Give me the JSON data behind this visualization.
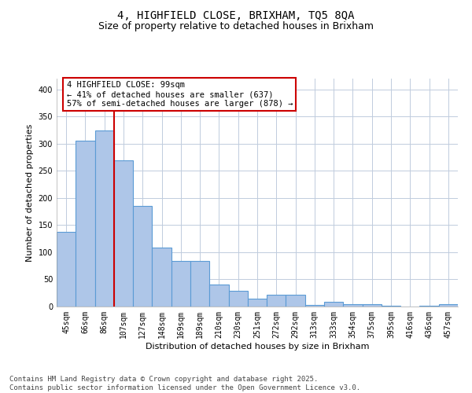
{
  "title_line1": "4, HIGHFIELD CLOSE, BRIXHAM, TQ5 8QA",
  "title_line2": "Size of property relative to detached houses in Brixham",
  "xlabel": "Distribution of detached houses by size in Brixham",
  "ylabel": "Number of detached properties",
  "categories": [
    "45sqm",
    "66sqm",
    "86sqm",
    "107sqm",
    "127sqm",
    "148sqm",
    "169sqm",
    "189sqm",
    "210sqm",
    "230sqm",
    "251sqm",
    "272sqm",
    "292sqm",
    "313sqm",
    "333sqm",
    "354sqm",
    "375sqm",
    "395sqm",
    "416sqm",
    "436sqm",
    "457sqm"
  ],
  "values": [
    137,
    305,
    325,
    270,
    186,
    109,
    84,
    84,
    40,
    29,
    15,
    22,
    22,
    3,
    9,
    5,
    5,
    1,
    0,
    1,
    4
  ],
  "bar_color": "#aec6e8",
  "bar_edge_color": "#5b9bd5",
  "bar_edge_width": 0.8,
  "vline_x": 2.5,
  "vline_color": "#cc0000",
  "annotation_text": "4 HIGHFIELD CLOSE: 99sqm\n← 41% of detached houses are smaller (637)\n57% of semi-detached houses are larger (878) →",
  "annotation_box_color": "#ffffff",
  "annotation_box_edge": "#cc0000",
  "ylim": [
    0,
    420
  ],
  "yticks": [
    0,
    50,
    100,
    150,
    200,
    250,
    300,
    350,
    400
  ],
  "bg_color": "#ffffff",
  "grid_color": "#c0ccdd",
  "footer_line1": "Contains HM Land Registry data © Crown copyright and database right 2025.",
  "footer_line2": "Contains public sector information licensed under the Open Government Licence v3.0.",
  "title_fontsize": 10,
  "subtitle_fontsize": 9,
  "axis_label_fontsize": 8,
  "tick_fontsize": 7,
  "annotation_fontsize": 7.5,
  "footer_fontsize": 6.5
}
